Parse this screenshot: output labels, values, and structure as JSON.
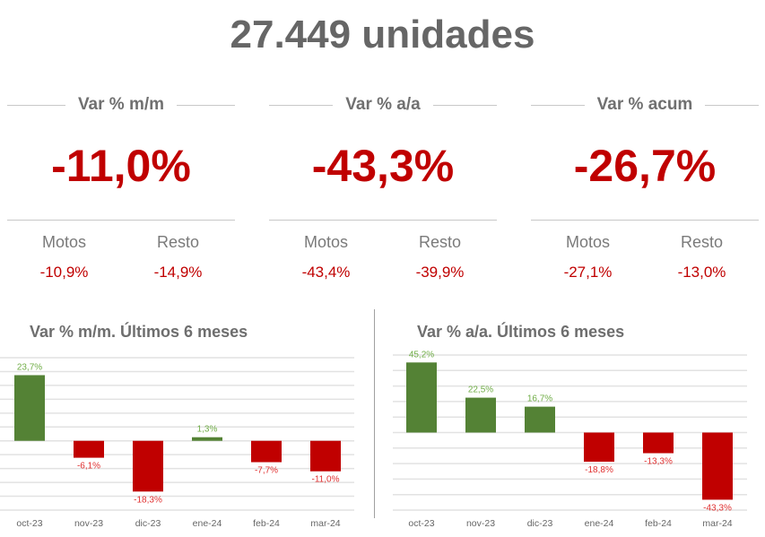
{
  "header": {
    "title": "27.449 unidades"
  },
  "kpis": [
    {
      "label": "Var % m/m",
      "value": "-11,0%",
      "motos_label": "Motos",
      "motos_value": "-10,9%",
      "resto_label": "Resto",
      "resto_value": "-14,9%"
    },
    {
      "label": "Var % a/a",
      "value": "-43,3%",
      "motos_label": "Motos",
      "motos_value": "-43,4%",
      "resto_label": "Resto",
      "resto_value": "-39,9%"
    },
    {
      "label": "Var % acum",
      "value": "-26,7%",
      "motos_label": "Motos",
      "motos_value": "-27,1%",
      "resto_label": "Resto",
      "resto_value": "-13,0%"
    }
  ],
  "colors": {
    "positive": "#548235",
    "negative": "#c00000",
    "positive_label": "#70ad47",
    "negative_label": "#e03030"
  },
  "chart_data": [
    {
      "type": "bar",
      "title": "Var % m/m. Últimos 6 meses",
      "categories": [
        "oct-23",
        "nov-23",
        "dic-23",
        "ene-24",
        "feb-24",
        "mar-24"
      ],
      "values": [
        23.7,
        -6.1,
        -18.3,
        1.3,
        -7.7,
        -11.0
      ],
      "labels": [
        "23,7%",
        "-6,1%",
        "-18,3%",
        "1,3%",
        "-7,7%",
        "-11,0%"
      ],
      "ylim": [
        -25,
        30
      ],
      "ystep": 5,
      "grid": true,
      "xlabel": "",
      "ylabel": ""
    },
    {
      "type": "bar",
      "title": "Var % a/a. Últimos 6 meses",
      "categories": [
        "oct-23",
        "nov-23",
        "dic-23",
        "ene-24",
        "feb-24",
        "mar-24"
      ],
      "values": [
        45.2,
        22.5,
        16.7,
        -18.8,
        -13.3,
        -43.3
      ],
      "labels": [
        "45,2%",
        "22,5%",
        "16,7%",
        "-18,8%",
        "-13,3%",
        "-43,3%"
      ],
      "ylim": [
        -50,
        50
      ],
      "ystep": 10,
      "grid": true,
      "xlabel": "",
      "ylabel": ""
    }
  ]
}
